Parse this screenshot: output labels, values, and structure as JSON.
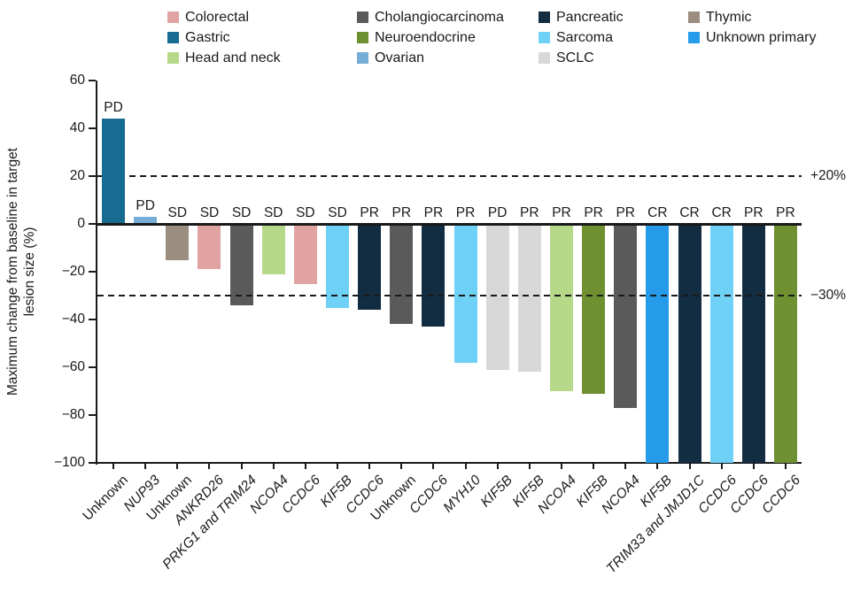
{
  "figure": {
    "y_axis_title_line1": "Maximum change from baseline in target",
    "y_axis_title_line2": "lesion size (%)"
  },
  "legend": {
    "position": "top",
    "columns": [
      [
        {
          "label": "Colorectal",
          "color": "#e1a3a2"
        },
        {
          "label": "Gastric",
          "color": "#186b91"
        },
        {
          "label": "Head and neck",
          "color": "#b6d889"
        }
      ],
      [
        {
          "label": "Cholangiocarcinoma",
          "color": "#5a5a5a"
        },
        {
          "label": "Neuroendocrine",
          "color": "#6e9030"
        },
        {
          "label": "Ovarian",
          "color": "#74aed6"
        }
      ],
      [
        {
          "label": "Pancreatic",
          "color": "#122c42"
        },
        {
          "label": "Sarcoma",
          "color": "#6fd1f5"
        },
        {
          "label": "SCLC",
          "color": "#d8d8d8"
        }
      ],
      [
        {
          "label": "Thymic",
          "color": "#9b8d7f"
        },
        {
          "label": "Unknown primary",
          "color": "#259be9"
        }
      ]
    ]
  },
  "chart_data": {
    "type": "bar",
    "subtype": "waterfall",
    "title": "",
    "ylabel": "Maximum change from baseline in target lesion size (%)",
    "xlabel": "",
    "ylim": [
      -100,
      60
    ],
    "grid": false,
    "yticks": [
      {
        "value": 60,
        "label": "60"
      },
      {
        "value": 40,
        "label": "40"
      },
      {
        "value": 20,
        "label": "20"
      },
      {
        "value": 0,
        "label": "0"
      },
      {
        "value": -20,
        "label": "−20"
      },
      {
        "value": -40,
        "label": "−40"
      },
      {
        "value": -60,
        "label": "−60"
      },
      {
        "value": -80,
        "label": "−80"
      },
      {
        "value": -100,
        "label": "−100"
      }
    ],
    "reference_lines": [
      {
        "value": 20,
        "label": "+20%",
        "above_bars": false
      },
      {
        "value": -30,
        "label": "−30%",
        "above_bars": true
      }
    ],
    "bars": [
      {
        "gene": "Unknown",
        "italic": false,
        "response": "PD",
        "value": 44,
        "cancer_type": "Gastric",
        "color": "#186b91"
      },
      {
        "gene": "NUP93",
        "italic": true,
        "response": "PD",
        "value": 3,
        "cancer_type": "Ovarian",
        "color": "#74aed6"
      },
      {
        "gene": "Unknown",
        "italic": false,
        "response": "SD",
        "value": -15,
        "cancer_type": "Thymic",
        "color": "#9b8d7f"
      },
      {
        "gene": "ANKRD26",
        "italic": true,
        "response": "SD",
        "value": -19,
        "cancer_type": "Colorectal",
        "color": "#e1a3a2"
      },
      {
        "gene": "PRKG1 and TRIM24",
        "italic": true,
        "response": "SD",
        "value": -34,
        "cancer_type": "Cholangiocarcinoma",
        "color": "#5a5a5a"
      },
      {
        "gene": "NCOA4",
        "italic": true,
        "response": "SD",
        "value": -21,
        "cancer_type": "Head and neck",
        "color": "#b6d889"
      },
      {
        "gene": "CCDC6",
        "italic": true,
        "response": "SD",
        "value": -25,
        "cancer_type": "Colorectal",
        "color": "#e1a3a2"
      },
      {
        "gene": "KIF5B",
        "italic": true,
        "response": "SD",
        "value": -35,
        "cancer_type": "Sarcoma",
        "color": "#6fd1f5"
      },
      {
        "gene": "CCDC6",
        "italic": true,
        "response": "PR",
        "value": -36,
        "cancer_type": "Pancreatic",
        "color": "#122c42"
      },
      {
        "gene": "Unknown",
        "italic": false,
        "response": "PR",
        "value": -42,
        "cancer_type": "Cholangiocarcinoma",
        "color": "#5a5a5a"
      },
      {
        "gene": "CCDC6",
        "italic": true,
        "response": "PR",
        "value": -43,
        "cancer_type": "Pancreatic",
        "color": "#122c42"
      },
      {
        "gene": "MYH10",
        "italic": true,
        "response": "PR",
        "value": -58,
        "cancer_type": "Sarcoma",
        "color": "#6fd1f5"
      },
      {
        "gene": "KIF5B",
        "italic": true,
        "response": "PD",
        "value": -61,
        "cancer_type": "SCLC",
        "color": "#d8d8d8"
      },
      {
        "gene": "KIF5B",
        "italic": true,
        "response": "PR",
        "value": -62,
        "cancer_type": "SCLC",
        "color": "#d8d8d8"
      },
      {
        "gene": "NCOA4",
        "italic": true,
        "response": "PR",
        "value": -70,
        "cancer_type": "Head and neck",
        "color": "#b6d889"
      },
      {
        "gene": "KIF5B",
        "italic": true,
        "response": "PR",
        "value": -71,
        "cancer_type": "Neuroendocrine",
        "color": "#6e9030"
      },
      {
        "gene": "NCOA4",
        "italic": true,
        "response": "PR",
        "value": -77,
        "cancer_type": "Cholangiocarcinoma",
        "color": "#5a5a5a"
      },
      {
        "gene": "KIF5B",
        "italic": true,
        "response": "CR",
        "value": -100,
        "cancer_type": "Unknown primary",
        "color": "#259be9"
      },
      {
        "gene": "TRIM33 and JMJD1C",
        "italic": true,
        "response": "CR",
        "value": -100,
        "cancer_type": "Pancreatic",
        "color": "#122c42"
      },
      {
        "gene": "CCDC6",
        "italic": true,
        "response": "CR",
        "value": -100,
        "cancer_type": "Sarcoma",
        "color": "#6fd1f5"
      },
      {
        "gene": "CCDC6",
        "italic": true,
        "response": "PR",
        "value": -100,
        "cancer_type": "Pancreatic",
        "color": "#122c42"
      },
      {
        "gene": "CCDC6",
        "italic": true,
        "response": "PR",
        "value": -100,
        "cancer_type": "Neuroendocrine",
        "color": "#6e9030"
      }
    ]
  }
}
